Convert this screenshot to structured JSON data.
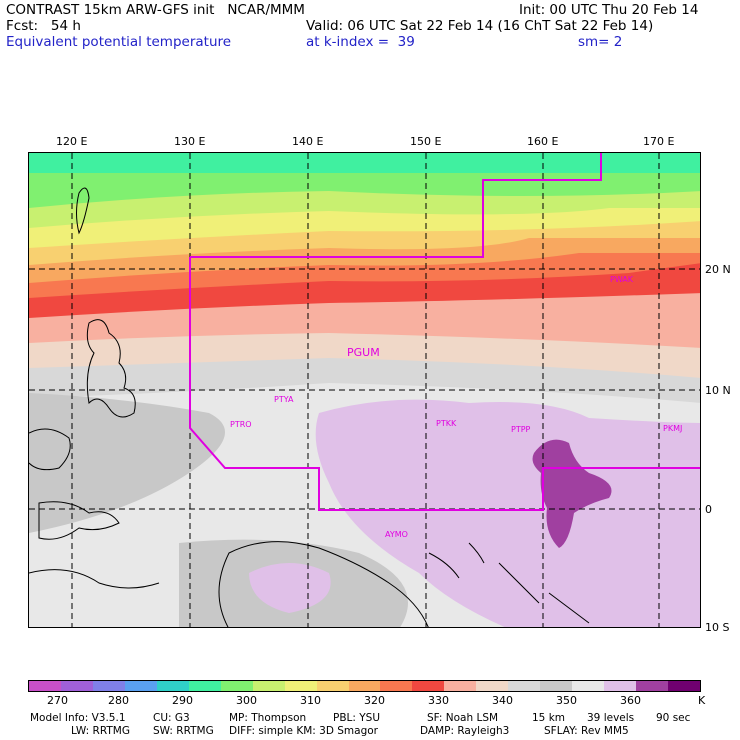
{
  "header": {
    "line1_left": "CONTRAST 15km ARW-GFS init   NCAR/MMM",
    "line1_right": "Init: 00 UTC Thu 20 Feb 14",
    "line2_left": "Fcst:   54 h",
    "line2_right": "Valid: 06 UTC Sat 22 Feb 14 (16 ChT Sat 22 Feb 14)",
    "field_name": "Equivalent potential temperature",
    "level": "at k-index =  39",
    "smoothing": "sm= 2"
  },
  "axes": {
    "lon_labels": [
      "120 E",
      "130 E",
      "140 E",
      "150 E",
      "160 E",
      "170 E"
    ],
    "lat_labels": [
      "20 N",
      "10 N",
      "0",
      "10 S"
    ]
  },
  "stations": [
    "PGUM",
    "PTYA",
    "PTRO",
    "PTKK",
    "PTPP",
    "PKMJ",
    "PWAK",
    "AYMO"
  ],
  "colorbar": {
    "colors": [
      "#c850c8",
      "#a060d8",
      "#8080e8",
      "#5aa0f0",
      "#30d0c8",
      "#40f0a0",
      "#80f070",
      "#c8f070",
      "#f0f078",
      "#f8d070",
      "#f8a860",
      "#f87850",
      "#f04840",
      "#f8b0a0",
      "#f0d8c8",
      "#d8d8d8",
      "#c8c8c8",
      "#e8e8e8",
      "#e0c0e8",
      "#a040a0",
      "#700070"
    ],
    "labels": [
      "270",
      "280",
      "290",
      "300",
      "310",
      "320",
      "330",
      "340",
      "350",
      "360"
    ],
    "unit": "K"
  },
  "footer": {
    "model_info": "Model Info: V3.5.1",
    "cu": "CU: G3",
    "mp": "MP: Thompson",
    "pbl": "PBL: YSU",
    "sf": "SF: Noah LSM",
    "res": "15 km",
    "levels": "39 levels",
    "dt": "90 sec",
    "lw": "LW: RRTMG",
    "sw": "SW: RRTMG",
    "diff": "DIFF: simple KM: 3D Smagor",
    "damp": "DAMP: Rayleigh3",
    "sflay": "SFLAY: Rev MM5"
  }
}
